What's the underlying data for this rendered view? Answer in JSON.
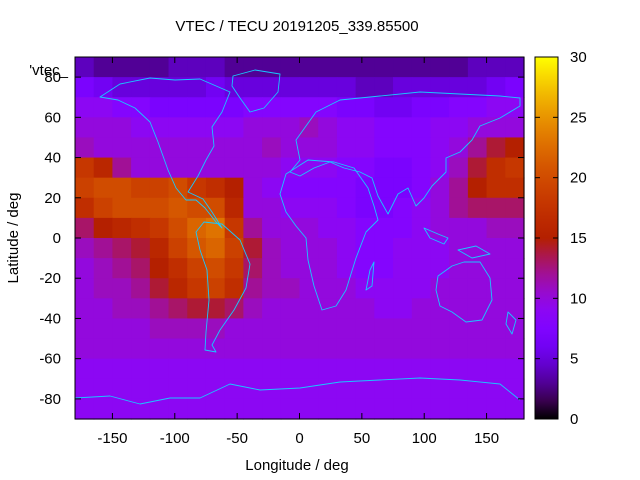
{
  "chart_data": {
    "type": "heatmap",
    "title": "VTEC / TECU 20191205_339.85500",
    "xlabel": "Longitude / deg",
    "ylabel": "Latitude / deg",
    "key_label": "'vtec_",
    "xlim": [
      -180,
      180
    ],
    "ylim": [
      -90,
      90
    ],
    "x_ticks": [
      -150,
      -100,
      -50,
      0,
      50,
      100,
      150
    ],
    "y_ticks": [
      -80,
      -60,
      -40,
      -20,
      0,
      20,
      40,
      60,
      80
    ],
    "colorbar": {
      "min": 0,
      "max": 30,
      "ticks": [
        0,
        5,
        10,
        15,
        20,
        25,
        30
      ],
      "palette": "black-blue-purple-red-orange-yellow"
    },
    "grid": false,
    "grid_spec": {
      "lon_start": -180,
      "lon_step": 15,
      "lat_start": 90,
      "lat_step": -10
    },
    "values": [
      [
        4,
        3,
        3,
        3,
        3,
        4,
        4,
        4,
        3,
        3,
        3,
        3,
        3,
        3,
        3,
        3,
        3,
        3,
        3,
        3,
        3,
        4,
        4,
        4
      ],
      [
        7,
        6,
        5,
        5,
        5,
        5,
        5,
        6,
        5,
        5,
        5,
        5,
        5,
        5,
        5,
        4,
        4,
        5,
        5,
        5,
        5,
        5,
        6,
        7
      ],
      [
        9,
        9,
        8,
        8,
        7,
        7,
        7,
        7,
        7,
        8,
        8,
        8,
        8,
        8,
        7,
        7,
        6,
        6,
        7,
        7,
        8,
        8,
        9,
        9
      ],
      [
        10,
        10,
        10,
        9,
        9,
        9,
        9,
        9,
        9,
        10,
        10,
        10,
        11,
        10,
        9,
        9,
        8,
        8,
        8,
        9,
        9,
        10,
        10,
        10
      ],
      [
        11,
        10,
        10,
        10,
        10,
        10,
        10,
        10,
        10,
        10,
        11,
        10,
        10,
        10,
        9,
        9,
        8,
        8,
        8,
        9,
        10,
        12,
        14,
        15
      ],
      [
        18,
        16,
        12,
        10,
        10,
        10,
        10,
        10,
        10,
        10,
        10,
        9,
        9,
        9,
        8,
        8,
        7,
        7,
        8,
        9,
        11,
        14,
        17,
        18
      ],
      [
        19,
        20,
        20,
        19,
        19,
        20,
        18,
        17,
        15,
        10,
        9,
        8,
        8,
        8,
        8,
        7,
        7,
        7,
        8,
        10,
        12,
        15,
        17,
        17
      ],
      [
        17,
        19,
        20,
        20,
        20,
        21,
        20,
        20,
        16,
        10,
        10,
        9,
        9,
        9,
        8,
        7,
        7,
        8,
        9,
        10,
        12,
        13,
        13,
        13
      ],
      [
        13,
        15,
        16,
        17,
        18,
        20,
        22,
        23,
        18,
        12,
        10,
        10,
        10,
        9,
        9,
        8,
        8,
        8,
        9,
        10,
        10,
        10,
        11,
        11
      ],
      [
        11,
        12,
        13,
        14,
        16,
        19,
        21,
        22,
        19,
        14,
        11,
        10,
        10,
        10,
        9,
        8,
        8,
        9,
        9,
        9,
        10,
        10,
        10,
        10
      ],
      [
        10,
        11,
        12,
        13,
        15,
        17,
        19,
        20,
        18,
        13,
        11,
        10,
        10,
        10,
        9,
        8,
        8,
        9,
        9,
        9,
        10,
        10,
        10,
        10
      ],
      [
        10,
        11,
        11,
        12,
        14,
        16,
        18,
        19,
        17,
        12,
        11,
        11,
        10,
        10,
        10,
        9,
        9,
        9,
        9,
        10,
        10,
        10,
        10,
        10
      ],
      [
        10,
        10,
        11,
        11,
        12,
        13,
        14,
        14,
        13,
        11,
        10,
        10,
        10,
        10,
        10,
        10,
        9,
        9,
        10,
        10,
        10,
        10,
        10,
        10
      ],
      [
        10,
        10,
        10,
        10,
        11,
        11,
        11,
        11,
        10,
        10,
        10,
        10,
        10,
        10,
        10,
        10,
        10,
        10,
        10,
        10,
        10,
        10,
        10,
        10
      ],
      [
        10,
        10,
        10,
        10,
        10,
        10,
        10,
        10,
        10,
        10,
        10,
        10,
        10,
        10,
        10,
        10,
        10,
        10,
        10,
        10,
        10,
        10,
        10,
        10
      ],
      [
        9,
        9,
        9,
        9,
        9,
        9,
        9,
        9,
        9,
        9,
        9,
        9,
        9,
        9,
        9,
        9,
        9,
        9,
        9,
        9,
        9,
        9,
        9,
        9
      ],
      [
        9,
        9,
        9,
        9,
        9,
        9,
        9,
        9,
        9,
        9,
        9,
        9,
        9,
        9,
        9,
        9,
        9,
        9,
        9,
        9,
        9,
        9,
        9,
        9
      ],
      [
        9,
        9,
        9,
        9,
        9,
        9,
        9,
        9,
        9,
        9,
        9,
        9,
        9,
        9,
        9,
        9,
        9,
        9,
        9,
        9,
        9,
        9,
        9,
        9
      ]
    ]
  }
}
